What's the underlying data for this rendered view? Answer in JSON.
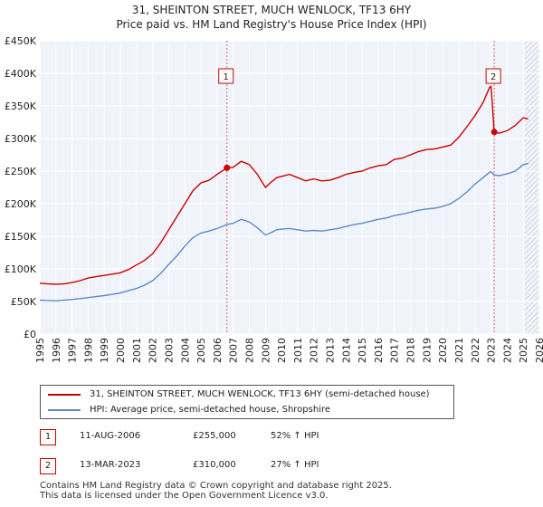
{
  "chart_data": {
    "type": "line",
    "title": "31, SHEINTON STREET, MUCH WENLOCK, TF13 6HY",
    "subtitle": "Price paid vs. HM Land Registry's House Price Index (HPI)",
    "xlim": [
      1995,
      2026
    ],
    "ylim": [
      0,
      450000
    ],
    "y_ticks": [
      0,
      50000,
      100000,
      150000,
      200000,
      250000,
      300000,
      350000,
      400000,
      450000
    ],
    "y_tick_labels": [
      "£0",
      "£50K",
      "£100K",
      "£150K",
      "£200K",
      "£250K",
      "£300K",
      "£350K",
      "£400K",
      "£450K"
    ],
    "x_ticks": [
      1995,
      1996,
      1997,
      1998,
      1999,
      2000,
      2001,
      2002,
      2003,
      2004,
      2005,
      2006,
      2007,
      2008,
      2009,
      2010,
      2011,
      2012,
      2013,
      2014,
      2015,
      2016,
      2017,
      2018,
      2019,
      2020,
      2021,
      2022,
      2023,
      2024,
      2025,
      2026
    ],
    "x_tick_labels": [
      "1995",
      "1996",
      "1997",
      "1998",
      "1999",
      "2000",
      "2001",
      "2002",
      "2003",
      "2004",
      "2005",
      "2006",
      "2007",
      "2008",
      "2009",
      "2010",
      "2011",
      "2012",
      "2013",
      "2014",
      "2015",
      "2016",
      "2017",
      "2018",
      "2019",
      "2020",
      "2021",
      "2022",
      "2023",
      "2024",
      "2025",
      "2026"
    ],
    "grid": true,
    "future_hatch_from": 2025.1,
    "series": [
      {
        "name": "31, SHEINTON STREET, MUCH WENLOCK, TF13 6HY (semi-detached house)",
        "color": "#cc0000",
        "x": [
          1995.0,
          1995.5,
          1996.0,
          1996.5,
          1997.0,
          1997.5,
          1998.0,
          1998.5,
          1999.0,
          1999.5,
          2000.0,
          2000.5,
          2001.0,
          2001.5,
          2002.0,
          2002.5,
          2003.0,
          2003.5,
          2004.0,
          2004.5,
          2005.0,
          2005.5,
          2006.0,
          2006.61,
          2007.0,
          2007.5,
          2008.0,
          2008.5,
          2009.0,
          2009.3,
          2009.7,
          2010.0,
          2010.5,
          2011.0,
          2011.5,
          2012.0,
          2012.5,
          2013.0,
          2013.5,
          2014.0,
          2014.5,
          2015.0,
          2015.5,
          2016.0,
          2016.5,
          2017.0,
          2017.5,
          2018.0,
          2018.5,
          2019.0,
          2019.5,
          2020.0,
          2020.5,
          2021.0,
          2021.5,
          2022.0,
          2022.5,
          2022.9,
          2023.0,
          2023.2,
          2023.5,
          2024.0,
          2024.5,
          2025.0,
          2025.3
        ],
        "values": [
          78000,
          77000,
          76500,
          77000,
          79000,
          82000,
          86000,
          88000,
          90000,
          92000,
          94000,
          99000,
          106000,
          113000,
          123000,
          140000,
          160000,
          180000,
          200000,
          220000,
          232000,
          236000,
          245000,
          255000,
          256000,
          265000,
          260000,
          245000,
          225000,
          232000,
          240000,
          242000,
          245000,
          240000,
          235000,
          238000,
          235000,
          236000,
          240000,
          245000,
          248000,
          250000,
          255000,
          258000,
          260000,
          268000,
          270000,
          275000,
          280000,
          283000,
          284000,
          287000,
          290000,
          302000,
          318000,
          335000,
          355000,
          378000,
          380000,
          310000,
          308000,
          312000,
          320000,
          332000,
          330000
        ]
      },
      {
        "name": "HPI: Average price, semi-detached house, Shropshire",
        "color": "#5b8ac9",
        "x": [
          1995.0,
          1995.5,
          1996.0,
          1996.5,
          1997.0,
          1997.5,
          1998.0,
          1998.5,
          1999.0,
          1999.5,
          2000.0,
          2000.5,
          2001.0,
          2001.5,
          2002.0,
          2002.5,
          2003.0,
          2003.5,
          2004.0,
          2004.5,
          2005.0,
          2005.5,
          2006.0,
          2006.61,
          2007.0,
          2007.5,
          2008.0,
          2008.5,
          2009.0,
          2009.3,
          2009.7,
          2010.0,
          2010.5,
          2011.0,
          2011.5,
          2012.0,
          2012.5,
          2013.0,
          2013.5,
          2014.0,
          2014.5,
          2015.0,
          2015.5,
          2016.0,
          2016.5,
          2017.0,
          2017.5,
          2018.0,
          2018.5,
          2019.0,
          2019.5,
          2020.0,
          2020.5,
          2021.0,
          2021.5,
          2022.0,
          2022.5,
          2022.9,
          2023.0,
          2023.2,
          2023.5,
          2024.0,
          2024.5,
          2025.0,
          2025.3
        ],
        "values": [
          52000,
          51500,
          51000,
          52000,
          53000,
          54500,
          56000,
          57500,
          59000,
          61000,
          63000,
          66500,
          70000,
          75000,
          82000,
          93000,
          107000,
          120000,
          135000,
          148000,
          155000,
          158000,
          162000,
          168000,
          170000,
          176000,
          172000,
          163000,
          152000,
          155000,
          160000,
          161000,
          162000,
          160000,
          158000,
          159000,
          158000,
          160000,
          162000,
          165000,
          168000,
          170000,
          173000,
          176000,
          178000,
          182000,
          184000,
          187000,
          190000,
          192000,
          193000,
          196000,
          200000,
          208000,
          218000,
          230000,
          240000,
          248000,
          249000,
          244000,
          243000,
          246000,
          250000,
          260000,
          262000
        ]
      }
    ],
    "annotations": [
      {
        "label": "1",
        "x": 2006.61,
        "value": 255000
      },
      {
        "label": "2",
        "x": 2023.2,
        "value": 310000
      }
    ]
  },
  "legend": {
    "items": [
      {
        "label": "31, SHEINTON STREET, MUCH WENLOCK, TF13 6HY (semi-detached house)",
        "color": "#cc0000"
      },
      {
        "label": "HPI: Average price, semi-detached house, Shropshire",
        "color": "#5b8ac9"
      }
    ]
  },
  "transactions": [
    {
      "num": "1",
      "date": "11-AUG-2006",
      "price": "£255,000",
      "hpi": "52% ↑ HPI"
    },
    {
      "num": "2",
      "date": "13-MAR-2023",
      "price": "£310,000",
      "hpi": "27% ↑ HPI"
    }
  ],
  "footer": {
    "line1": "Contains HM Land Registry data © Crown copyright and database right 2025.",
    "line2": "This data is licensed under the Open Government Licence v3.0."
  }
}
